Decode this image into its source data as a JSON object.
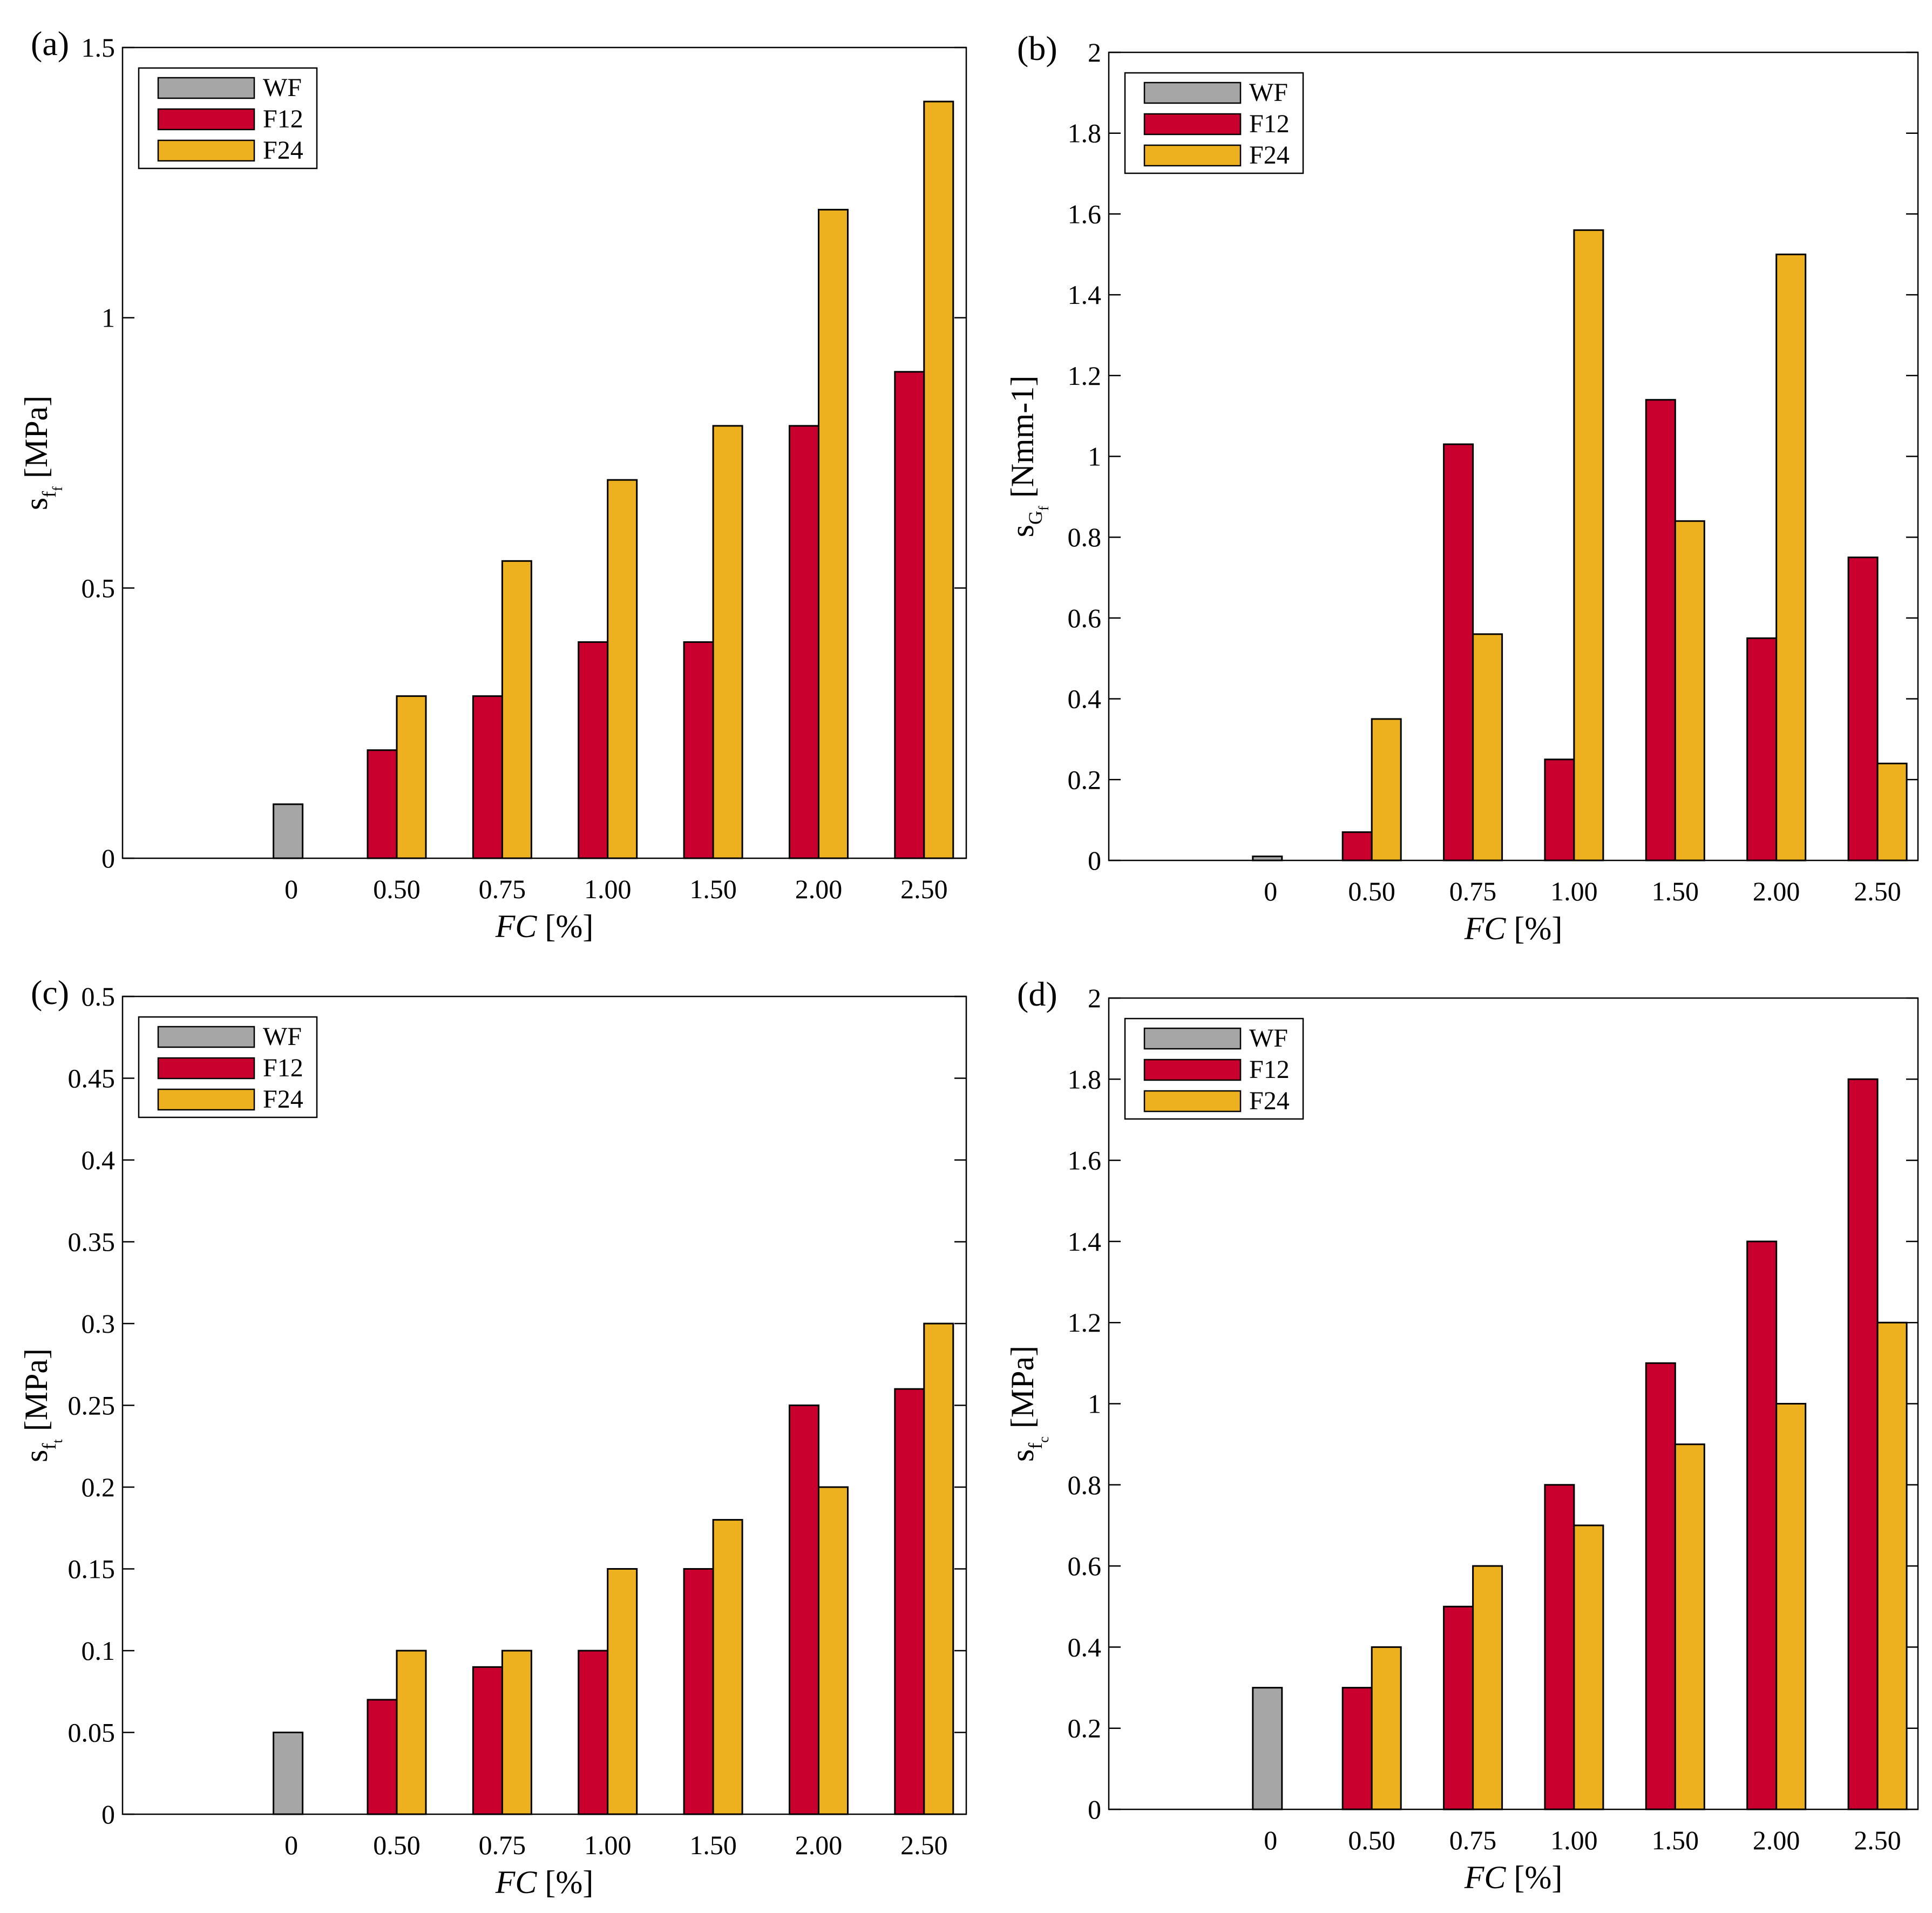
{
  "colors": {
    "WF": "#a6a6a6",
    "F12": "#c9002e",
    "F24": "#edb120"
  },
  "chart_data": [
    {
      "type": "bar",
      "panel_label": "(a)",
      "categories": [
        "0",
        "0.50",
        "0.75",
        "1.00",
        "1.50",
        "2.00",
        "2.50"
      ],
      "series": [
        {
          "name": "WF",
          "values": [
            0.1,
            null,
            null,
            null,
            null,
            null,
            null
          ]
        },
        {
          "name": "F12",
          "values": [
            null,
            0.2,
            0.3,
            0.4,
            0.4,
            0.8,
            0.9
          ]
        },
        {
          "name": "F24",
          "values": [
            null,
            0.3,
            0.55,
            0.7,
            0.8,
            1.2,
            1.4
          ]
        }
      ],
      "xlabel_main": "FC",
      "xlabel_unit": " [%]",
      "ylabel": {
        "main": "s",
        "sub": "f",
        "subsub": "f",
        "unit": " [MPa]"
      },
      "ylim": [
        0,
        1.5
      ],
      "yticks": [
        0,
        0.5,
        1,
        1.5
      ],
      "ytick_labels": [
        "0",
        "0.5",
        "1",
        "1.5"
      ],
      "legend": "top-left",
      "grid": false
    },
    {
      "type": "bar",
      "panel_label": "(b)",
      "categories": [
        "0",
        "0.50",
        "0.75",
        "1.00",
        "1.50",
        "2.00",
        "2.50"
      ],
      "series": [
        {
          "name": "WF",
          "values": [
            0.01,
            null,
            null,
            null,
            null,
            null,
            null
          ]
        },
        {
          "name": "F12",
          "values": [
            null,
            0.07,
            1.03,
            0.25,
            1.14,
            0.55,
            0.75
          ]
        },
        {
          "name": "F24",
          "values": [
            null,
            0.35,
            0.56,
            1.56,
            0.84,
            1.5,
            0.24
          ]
        }
      ],
      "xlabel_main": "FC",
      "xlabel_unit": " [%]",
      "ylabel": {
        "main": "s",
        "sub": "G",
        "subsub": "f",
        "unit": " [Nmm-1]"
      },
      "ylim": [
        0,
        2
      ],
      "yticks": [
        0,
        0.2,
        0.4,
        0.6,
        0.8,
        1,
        1.2,
        1.4,
        1.6,
        1.8,
        2
      ],
      "ytick_labels": [
        "0",
        "0.2",
        "0.4",
        "0.6",
        "0.8",
        "1",
        "1.2",
        "1.4",
        "1.6",
        "1.8",
        "2"
      ],
      "legend": "top-left",
      "grid": false
    },
    {
      "type": "bar",
      "panel_label": "(c)",
      "categories": [
        "0",
        "0.50",
        "0.75",
        "1.00",
        "1.50",
        "2.00",
        "2.50"
      ],
      "series": [
        {
          "name": "WF",
          "values": [
            0.05,
            null,
            null,
            null,
            null,
            null,
            null
          ]
        },
        {
          "name": "F12",
          "values": [
            null,
            0.07,
            0.09,
            0.1,
            0.15,
            0.25,
            0.26
          ]
        },
        {
          "name": "F24",
          "values": [
            null,
            0.1,
            0.1,
            0.15,
            0.18,
            0.2,
            0.3
          ]
        }
      ],
      "xlabel_main": "FC",
      "xlabel_unit": " [%]",
      "ylabel": {
        "main": "s",
        "sub": "f",
        "subsub": "t",
        "unit": " [MPa]"
      },
      "ylim": [
        0,
        0.5
      ],
      "yticks": [
        0,
        0.05,
        0.1,
        0.15,
        0.2,
        0.25,
        0.3,
        0.35,
        0.4,
        0.45,
        0.5
      ],
      "ytick_labels": [
        "0",
        "0.05",
        "0.1",
        "0.15",
        "0.2",
        "0.25",
        "0.3",
        "0.35",
        "0.4",
        "0.45",
        "0.5"
      ],
      "legend": "top-left",
      "grid": false
    },
    {
      "type": "bar",
      "panel_label": "(d)",
      "categories": [
        "0",
        "0.50",
        "0.75",
        "1.00",
        "1.50",
        "2.00",
        "2.50"
      ],
      "series": [
        {
          "name": "WF",
          "values": [
            0.3,
            null,
            null,
            null,
            null,
            null,
            null
          ]
        },
        {
          "name": "F12",
          "values": [
            null,
            0.3,
            0.5,
            0.8,
            1.1,
            1.4,
            1.8
          ]
        },
        {
          "name": "F24",
          "values": [
            null,
            0.4,
            0.6,
            0.7,
            0.9,
            1.0,
            1.2
          ]
        }
      ],
      "xlabel_main": "FC",
      "xlabel_unit": " [%]",
      "ylabel": {
        "main": "s",
        "sub": "f",
        "subsub": "c",
        "unit": " [MPa]"
      },
      "ylim": [
        0,
        2
      ],
      "yticks": [
        0,
        0.2,
        0.4,
        0.6,
        0.8,
        1,
        1.2,
        1.4,
        1.6,
        1.8,
        2
      ],
      "ytick_labels": [
        "0",
        "0.2",
        "0.4",
        "0.6",
        "0.8",
        "1",
        "1.2",
        "1.4",
        "1.6",
        "1.8",
        "2"
      ],
      "legend": "top-left",
      "grid": false
    }
  ]
}
